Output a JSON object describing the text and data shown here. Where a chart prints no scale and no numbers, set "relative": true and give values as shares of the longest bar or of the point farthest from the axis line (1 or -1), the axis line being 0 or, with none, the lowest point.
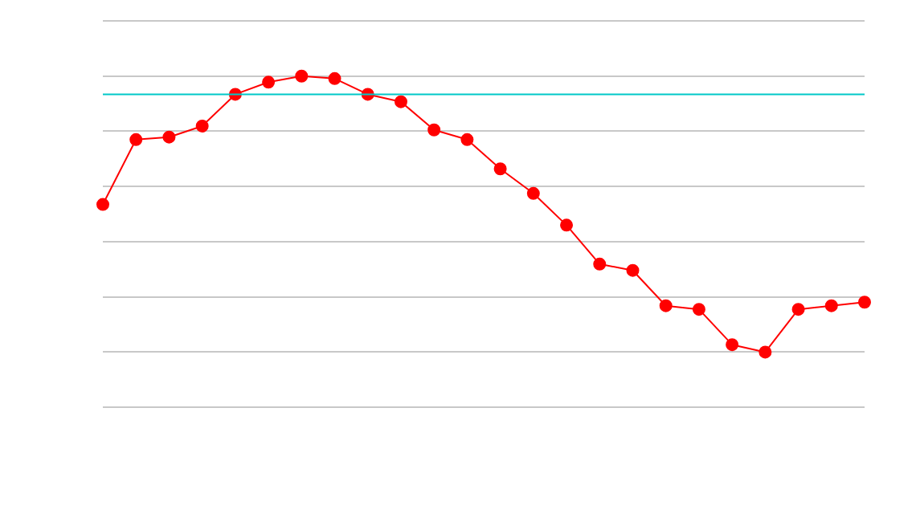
{
  "chart_data": {
    "type": "line",
    "relative": true,
    "categories": [
      null,
      null,
      null,
      null,
      null,
      null,
      null,
      null,
      null,
      null,
      null,
      null,
      null,
      null,
      null,
      null,
      null,
      null,
      null,
      null,
      null,
      null,
      null,
      null
    ],
    "series": [
      {
        "color": "#ff0000",
        "values": [
          0.535,
          0.77,
          0.779,
          0.819,
          0.934,
          0.978,
          1,
          0.991,
          0.934,
          0.907,
          0.805,
          0.77,
          0.664,
          0.575,
          0.46,
          0.319,
          0.296,
          0.168,
          0.155,
          0.027,
          0,
          0.155,
          0.168,
          0.181
        ]
      }
    ],
    "ref_lines": [
      {
        "axis": "y",
        "value": 0.934,
        "color": "#00c8c8"
      }
    ],
    "grid": "y",
    "legend": false,
    "marker": "circle",
    "line_style": "solid"
  }
}
